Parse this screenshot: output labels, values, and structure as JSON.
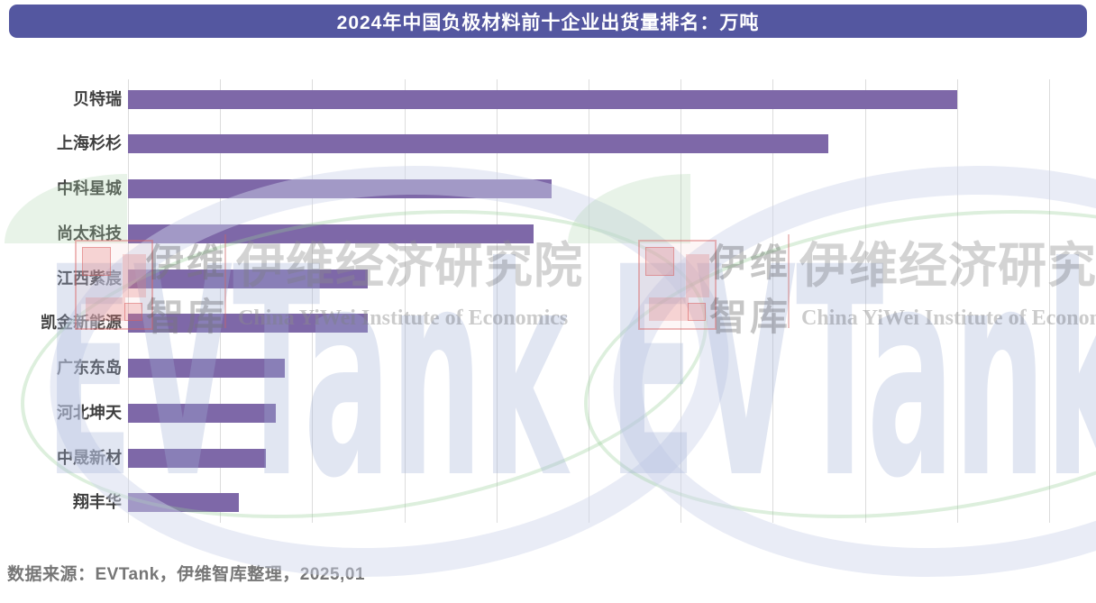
{
  "title": {
    "text": "2024年中国负极材料前十企业出货量排名：万吨"
  },
  "source_note": "数据来源：EVTank，伊维智库整理，2025,01",
  "colors": {
    "banner_bg": "#5457a0",
    "title_text": "#ffffff",
    "bar": "#7e68a8",
    "gridline": "#dcdcdc",
    "label_text": "#3f3f3f",
    "source_text": "#767676"
  },
  "watermark": {
    "cn_short_top": "伊维",
    "cn_short_bottom": "智库",
    "institute_cn": "伊维经济研究院",
    "institute_en": "China YiWei Institute of Economics",
    "logo_text": "EVTank"
  },
  "chart_data": {
    "type": "bar",
    "orientation": "horizontal",
    "title": "2024年中国负极材料前十企业出货量排名：万吨",
    "unit": "万吨",
    "categories": [
      "贝特瑞",
      "上海杉杉",
      "中科星城",
      "尚太科技",
      "江西紫宸",
      "凯金新能源",
      "广东东岛",
      "河北坤天",
      "中晟新材",
      "翔丰华"
    ],
    "values": [
      9.0,
      7.6,
      4.6,
      4.4,
      2.6,
      2.6,
      1.7,
      1.6,
      1.5,
      1.2
    ],
    "value_note": "x-axis ticks are unlabeled in the image; values estimated in gridline units (one unit per gridline interval)",
    "xlim": [
      0,
      10
    ],
    "xlabel": "",
    "ylabel": "",
    "grid": "11 vertical gridlines, no tick labels",
    "legend": "none",
    "source": "数据来源：EVTank，伊维智库整理，2025,01"
  }
}
